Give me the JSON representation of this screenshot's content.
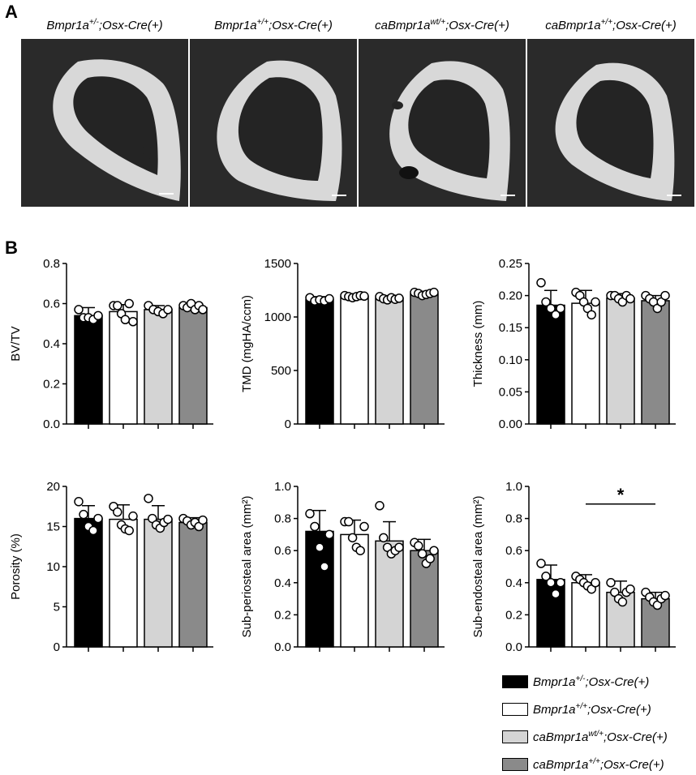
{
  "panel_a": {
    "letter": "A",
    "images": [
      {
        "label_parts": [
          "Bmpr1a",
          "+/-",
          ";Osx-Cre(+)"
        ]
      },
      {
        "label_parts": [
          "Bmpr1a",
          "+/+",
          ";Osx-Cre(+)"
        ]
      },
      {
        "label_parts": [
          "caBmpr1a",
          "wt/+",
          ";Osx-Cre(+)"
        ]
      },
      {
        "label_parts": [
          "caBmpr1a",
          "+/+",
          ";Osx-Cre(+)"
        ]
      }
    ]
  },
  "panel_b": {
    "letter": "B"
  },
  "colors": {
    "group_fills": [
      "#000000",
      "#ffffff",
      "#d4d4d4",
      "#8a8a8a"
    ]
  },
  "legend": {
    "items": [
      {
        "parts": [
          "Bmpr1a",
          "+/-",
          ";Osx-Cre(+)"
        ]
      },
      {
        "parts": [
          "Bmpr1a",
          "+/+",
          ";Osx-Cre(+)"
        ]
      },
      {
        "parts": [
          "caBmpr1a",
          "wt/+",
          ";Osx-Cre(+)"
        ]
      },
      {
        "parts": [
          "caBmpr1a",
          "+/+",
          ";Osx-Cre(+)"
        ]
      }
    ]
  },
  "chart_data": [
    {
      "type": "bar",
      "ylabel": "BV/TV",
      "ylim": [
        0,
        0.8
      ],
      "yticks": [
        "0.0",
        "0.2",
        "0.4",
        "0.6",
        "0.8"
      ],
      "values": [
        0.54,
        0.56,
        0.57,
        0.58
      ],
      "errors": [
        0.04,
        0.035,
        0.02,
        0.02
      ],
      "points": [
        [
          0.57,
          0.53,
          0.53,
          0.52,
          0.54
        ],
        [
          0.59,
          0.59,
          0.55,
          0.52,
          0.6,
          0.51
        ],
        [
          0.59,
          0.57,
          0.56,
          0.55,
          0.57
        ],
        [
          0.59,
          0.58,
          0.6,
          0.57,
          0.59,
          0.57
        ]
      ]
    },
    {
      "type": "bar",
      "ylabel": "TMD (mgHA/ccm)",
      "ylim": [
        0,
        1500
      ],
      "yticks": [
        "0",
        "500",
        "1000",
        "1500"
      ],
      "values": [
        1160,
        1190,
        1175,
        1215
      ],
      "errors": [
        30,
        25,
        25,
        25
      ],
      "points": [
        [
          1180,
          1150,
          1160,
          1150,
          1170
        ],
        [
          1200,
          1190,
          1180,
          1190,
          1200,
          1195
        ],
        [
          1190,
          1170,
          1160,
          1180,
          1165,
          1175
        ],
        [
          1230,
          1220,
          1200,
          1210,
          1220,
          1230
        ]
      ]
    },
    {
      "type": "bar",
      "ylabel": "Thickness (mm)",
      "ylim": [
        0,
        0.25
      ],
      "yticks": [
        "0.00",
        "0.05",
        "0.10",
        "0.15",
        "0.20",
        "0.25"
      ],
      "values": [
        0.185,
        0.188,
        0.196,
        0.192
      ],
      "errors": [
        0.023,
        0.02,
        0.007,
        0.008
      ],
      "points": [
        [
          0.22,
          0.19,
          0.18,
          0.17,
          0.18
        ],
        [
          0.205,
          0.2,
          0.19,
          0.18,
          0.17,
          0.19
        ],
        [
          0.2,
          0.2,
          0.195,
          0.19,
          0.2,
          0.195
        ],
        [
          0.2,
          0.195,
          0.19,
          0.18,
          0.19,
          0.2
        ]
      ]
    },
    {
      "type": "bar",
      "ylabel": "Porosity (%)",
      "ylim": [
        0,
        20
      ],
      "yticks": [
        "0",
        "5",
        "10",
        "15",
        "20"
      ],
      "values": [
        16.0,
        15.9,
        15.9,
        15.5
      ],
      "errors": [
        1.6,
        1.8,
        1.7,
        0.6
      ],
      "points": [
        [
          18.1,
          16.5,
          15.0,
          14.5,
          16.0
        ],
        [
          17.5,
          16.8,
          15.2,
          14.7,
          14.5,
          16.3
        ],
        [
          18.5,
          16.0,
          15.2,
          14.8,
          15.5,
          15.9
        ],
        [
          16.0,
          15.7,
          15.2,
          15.5,
          15.0,
          15.8
        ]
      ]
    },
    {
      "type": "bar",
      "ylabel": "Sub-periosteal area (mm²)",
      "ylim": [
        0,
        1.0
      ],
      "yticks": [
        "0.0",
        "0.2",
        "0.4",
        "0.6",
        "0.8",
        "1.0"
      ],
      "values": [
        0.72,
        0.7,
        0.66,
        0.6
      ],
      "errors": [
        0.13,
        0.09,
        0.12,
        0.07
      ],
      "points": [
        [
          0.83,
          0.75,
          0.62,
          0.5,
          0.7
        ],
        [
          0.78,
          0.78,
          0.68,
          0.62,
          0.6,
          0.75
        ],
        [
          0.88,
          0.68,
          0.62,
          0.58,
          0.6,
          0.62
        ],
        [
          0.65,
          0.63,
          0.58,
          0.52,
          0.55,
          0.6
        ]
      ]
    },
    {
      "type": "bar",
      "ylabel": "Sub-endosteal area (mm²)",
      "ylim": [
        0,
        1.0
      ],
      "yticks": [
        "0.0",
        "0.2",
        "0.4",
        "0.6",
        "0.8",
        "1.0"
      ],
      "values": [
        0.42,
        0.4,
        0.34,
        0.3
      ],
      "errors": [
        0.09,
        0.05,
        0.07,
        0.04
      ],
      "points": [
        [
          0.52,
          0.44,
          0.4,
          0.33,
          0.4
        ],
        [
          0.44,
          0.42,
          0.4,
          0.38,
          0.36,
          0.4
        ],
        [
          0.4,
          0.34,
          0.3,
          0.28,
          0.34,
          0.36
        ],
        [
          0.34,
          0.31,
          0.28,
          0.26,
          0.3,
          0.32
        ]
      ],
      "significance": {
        "from": 1,
        "to": 3,
        "y": 0.89,
        "label": "*"
      }
    }
  ]
}
